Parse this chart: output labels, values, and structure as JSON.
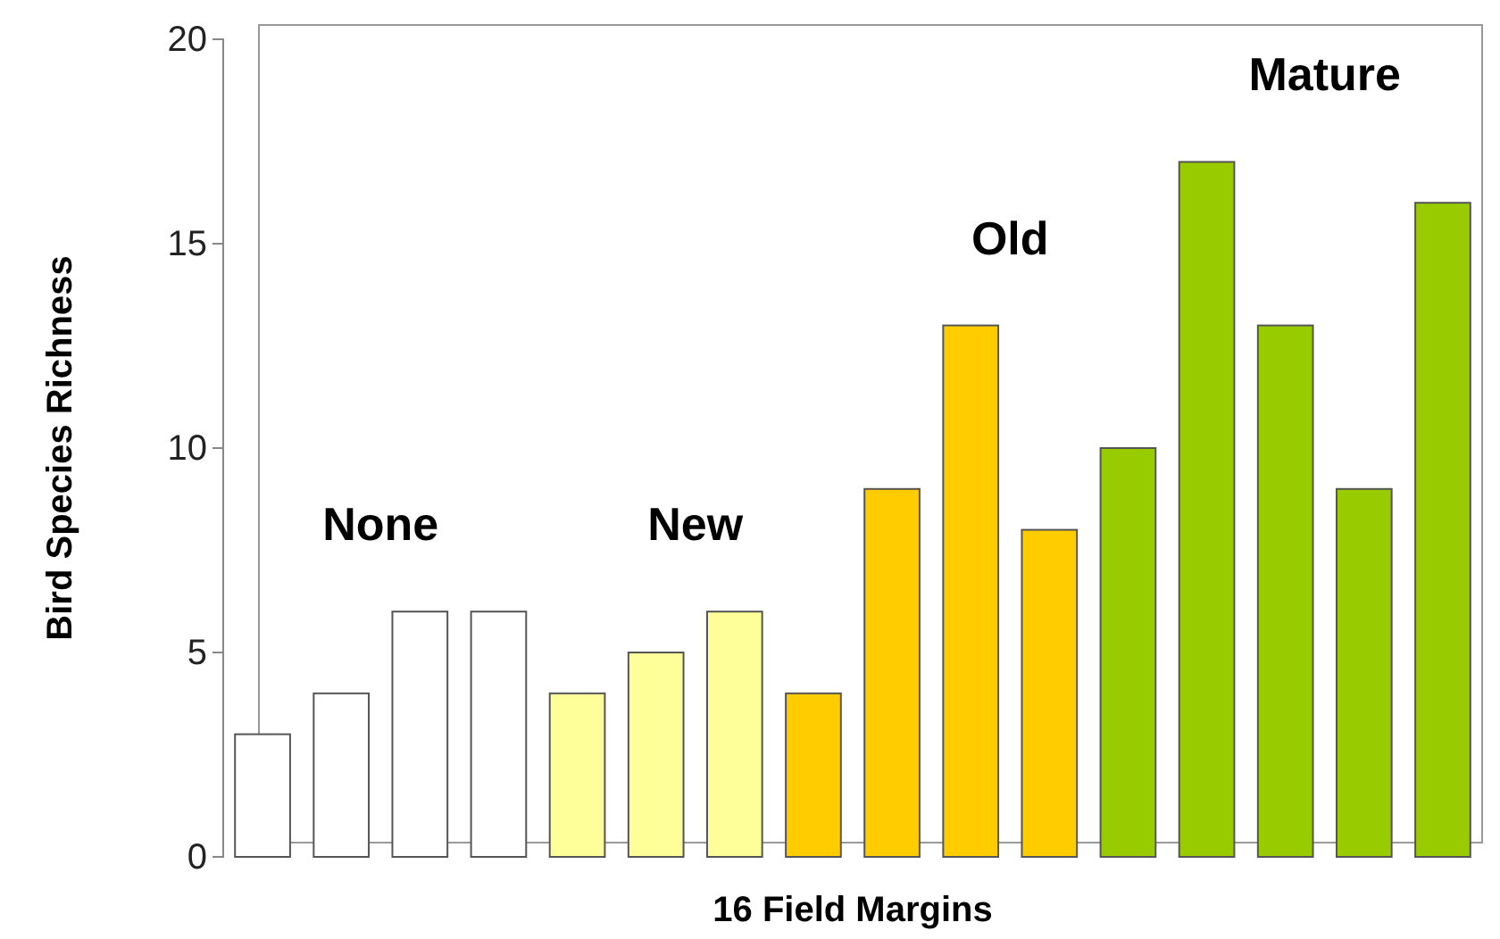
{
  "chart_data": {
    "type": "bar",
    "xlabel": "16 Field Margins",
    "ylabel": "Bird Species Richness",
    "categories": [
      null,
      null,
      null,
      null,
      null,
      null,
      null,
      null,
      null,
      null,
      null,
      null,
      null,
      null,
      null,
      null
    ],
    "values": [
      3,
      4,
      6,
      6,
      4,
      5,
      6,
      4,
      9,
      13,
      8,
      10,
      17,
      13,
      9,
      16
    ],
    "colors": [
      "#ffffff",
      "#ffffff",
      "#ffffff",
      "#ffffff",
      "#ffff99",
      "#ffff99",
      "#ffff99",
      "#ffcc00",
      "#ffcc00",
      "#ffcc00",
      "#ffcc00",
      "#99cc00",
      "#99cc00",
      "#99cc00",
      "#99cc00",
      "#99cc00"
    ],
    "ylim": [
      0,
      20
    ],
    "yticks": [
      0,
      5,
      10,
      15,
      20
    ],
    "grid": false,
    "annotations": [
      "None",
      "New",
      "Old",
      "Mature"
    ]
  }
}
